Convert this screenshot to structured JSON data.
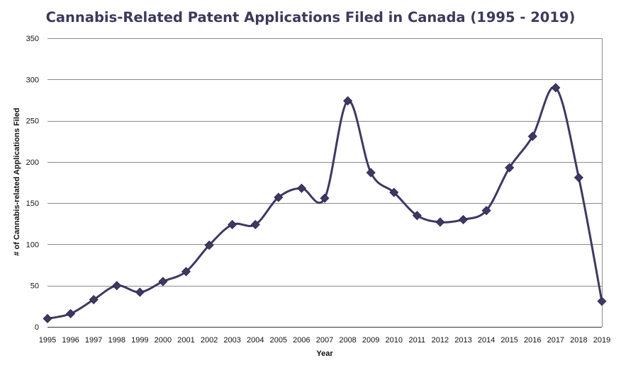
{
  "chart_data": {
    "type": "line",
    "title": "Cannabis-Related Patent Applications Filed in Canada (1995 - 2019)",
    "xlabel": "Year",
    "ylabel": "# of Cannabis-related  Applications  Filed",
    "x": [
      "1995",
      "1996",
      "1997",
      "1998",
      "1999",
      "2000",
      "2001",
      "2002",
      "2003",
      "2004",
      "2005",
      "2006",
      "2007",
      "2008",
      "2009",
      "2010",
      "2011",
      "2012",
      "2013",
      "2014",
      "2015",
      "2016",
      "2017",
      "2018",
      "2019"
    ],
    "series": [
      {
        "values": [
          10,
          16,
          33,
          50,
          42,
          55,
          67,
          99,
          124,
          124,
          157,
          168,
          156,
          274,
          187,
          163,
          135,
          127,
          130,
          141,
          193,
          231,
          290,
          181,
          31
        ]
      }
    ],
    "ylim": [
      0,
      350
    ],
    "yticks": [
      0,
      50,
      100,
      150,
      200,
      250,
      300,
      350
    ],
    "grid": true,
    "marker": "diamond",
    "colors": {
      "line": "#3f3863",
      "marker": "#3f3863",
      "grid": "#8a8a8a",
      "title": "#3b3a5c"
    }
  }
}
